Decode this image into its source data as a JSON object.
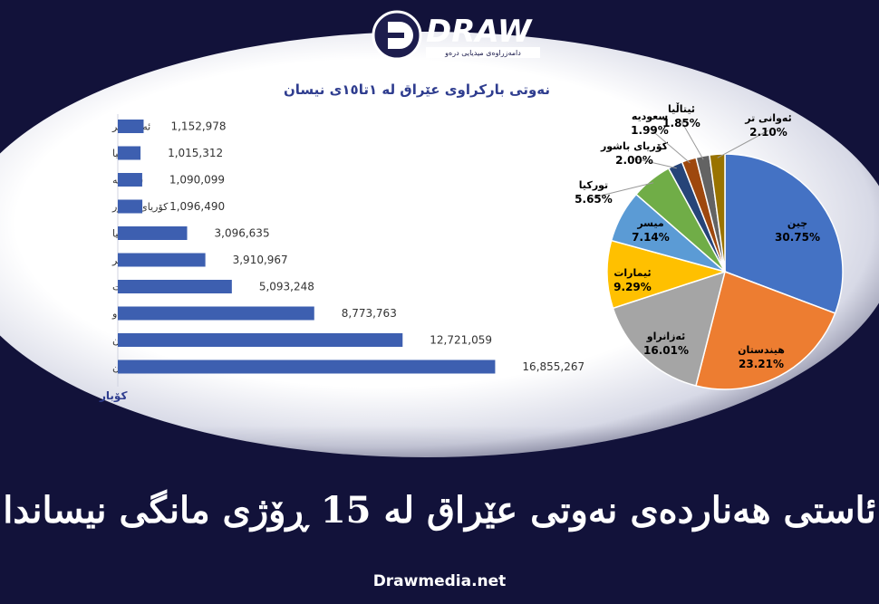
{
  "brand": {
    "logo_text": "DRAW",
    "logo_tagline": "دامەزراوەی میدیایی درەو"
  },
  "headline": "ئاستی هەناردەی نەوتی عێراق لە 15 ڕۆژی مانگی نیساندا",
  "footer_url": "Drawmedia.net",
  "colors": {
    "background": "#12123a",
    "bar": "#3d5fb0",
    "title": "#2f3d8f",
    "unit": "#2f3d8f"
  },
  "chart_data": [
    {
      "type": "bar",
      "orientation": "horizontal",
      "title": "نەوتی بارکراوی عێراق لە ١تا١٥ی نیسان",
      "unit_label": "کۆبار",
      "categories": [
        "ئەوانی تر",
        "ئیتاڵیا",
        "سعودیە",
        "کۆریای باشور",
        "تورکیا",
        "میسر",
        "ئیمارات",
        "ئەزانراو",
        "هیندستان",
        "چین"
      ],
      "values": [
        1152978,
        1015312,
        1090099,
        1096490,
        3096635,
        3910967,
        5093248,
        8773763,
        12721059,
        16855267
      ],
      "value_labels": [
        "1,152,978",
        "1,015,312",
        "1,090,099",
        "1,096,490",
        "3,096,635",
        "3,910,967",
        "5,093,248",
        "8,773,763",
        "12,721,059",
        "16,855,267"
      ],
      "xlim": [
        0,
        17000000
      ],
      "grid": false
    },
    {
      "type": "pie",
      "slices": [
        {
          "label": "چین",
          "value": 30.75,
          "text": "30.75%",
          "color": "#4472c4"
        },
        {
          "label": "هیندستان",
          "value": 23.21,
          "text": "23.21%",
          "color": "#ed7d31"
        },
        {
          "label": "ئەزانراو",
          "value": 16.01,
          "text": "16.01%",
          "color": "#a5a5a5"
        },
        {
          "label": "ئیمارات",
          "value": 9.29,
          "text": "9.29%",
          "color": "#ffc000"
        },
        {
          "label": "میسر",
          "value": 7.14,
          "text": "7.14%",
          "color": "#5b9bd5"
        },
        {
          "label": "تورکیا",
          "value": 5.65,
          "text": "5.65%",
          "color": "#70ad47"
        },
        {
          "label": "کۆریای باشور",
          "value": 2.0,
          "text": "2.00%",
          "color": "#264478"
        },
        {
          "label": "سعودیە",
          "value": 1.99,
          "text": "1.99%",
          "color": "#9e480e"
        },
        {
          "label": "ئیتاڵیا",
          "value": 1.85,
          "text": "1.85%",
          "color": "#636363"
        },
        {
          "label": "ئەوانی تر",
          "value": 2.1,
          "text": "2.10%",
          "color": "#997300"
        }
      ]
    }
  ]
}
